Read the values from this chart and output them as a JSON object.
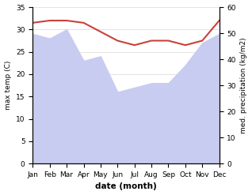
{
  "months": [
    "Jan",
    "Feb",
    "Mar",
    "Apr",
    "May",
    "Jun",
    "Jul",
    "Aug",
    "Sep",
    "Oct",
    "Nov",
    "Dec"
  ],
  "temp_max": [
    31.5,
    32.0,
    32.0,
    31.5,
    29.5,
    27.5,
    26.5,
    27.5,
    27.5,
    26.5,
    27.5,
    32.0
  ],
  "precip_left_scale": [
    29,
    28,
    30,
    23,
    24,
    16,
    17,
    18,
    18,
    22,
    27,
    29
  ],
  "temp_color": "#c9413a",
  "fill_color": "#c8ccf0",
  "xlabel": "date (month)",
  "ylabel_left": "max temp (C)",
  "ylabel_right": "med. precipitation (kg/m2)",
  "ylim_left": [
    0,
    35
  ],
  "ylim_right": [
    0,
    60
  ],
  "yticks_left": [
    0,
    5,
    10,
    15,
    20,
    25,
    30,
    35
  ],
  "yticks_right": [
    0,
    10,
    20,
    30,
    40,
    50,
    60
  ],
  "background_color": "#ffffff"
}
